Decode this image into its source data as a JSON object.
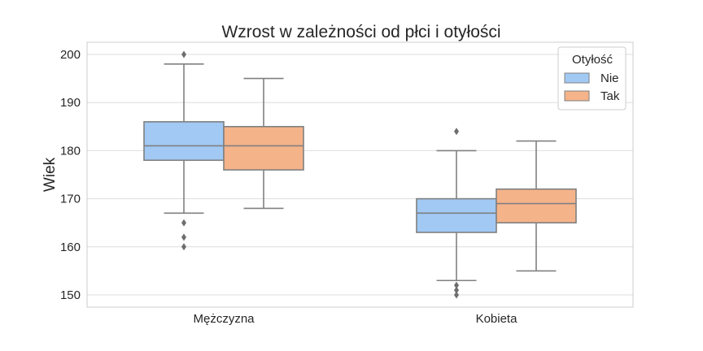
{
  "chart_data": {
    "type": "box",
    "title": "Wzrost w zależności od płci i otyłości",
    "ylabel": "Wiek",
    "xlabel": "",
    "ylim": [
      148,
      203
    ],
    "yticks": [
      150,
      160,
      170,
      180,
      190,
      200
    ],
    "categories": [
      "Mężczyzna",
      "Kobieta"
    ],
    "grid": true,
    "legend": {
      "title": "Otyłość",
      "placement": "top-right"
    },
    "series": [
      {
        "name": "Nie",
        "color": "#a1c9f4",
        "boxes": [
          {
            "whisker_low": 167,
            "q1": 178,
            "median": 181,
            "q3": 186,
            "whisker_high": 198,
            "outliers": [
              200,
              165,
              162,
              160
            ]
          },
          {
            "whisker_low": 153,
            "q1": 163,
            "median": 167,
            "q3": 170,
            "whisker_high": 180,
            "outliers": [
              184,
              152,
              151,
              150
            ]
          }
        ]
      },
      {
        "name": "Tak",
        "color": "#f5b38a",
        "boxes": [
          {
            "whisker_low": 168,
            "q1": 176,
            "median": 181,
            "q3": 185,
            "whisker_high": 195,
            "outliers": []
          },
          {
            "whisker_low": 155,
            "q1": 165,
            "median": 169,
            "q3": 172,
            "whisker_high": 182,
            "outliers": []
          }
        ]
      }
    ]
  }
}
